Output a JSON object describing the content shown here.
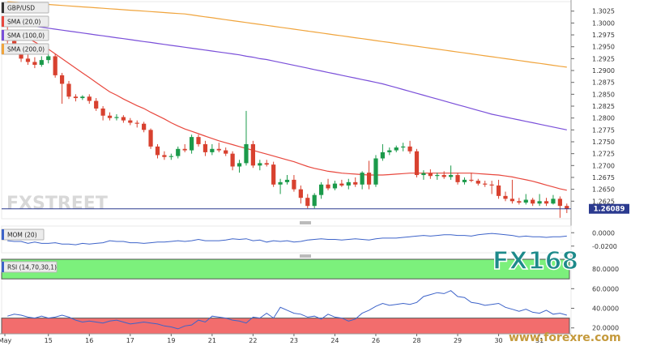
{
  "chart_data": [
    {
      "type": "candlestick",
      "symbol": "GBP/USD",
      "legend": [
        {
          "name": "GBP/USD",
          "color": "#333333"
        },
        {
          "name": "SMA (20,0)",
          "color": "#e8483e"
        },
        {
          "name": "SMA (100,0)",
          "color": "#7a4fd9"
        },
        {
          "name": "SMA (200,0)",
          "color": "#f0a43c"
        }
      ],
      "ylim": [
        1.2588,
        1.3045
      ],
      "ytick_labels": [
        "1.3025",
        "1.3000",
        "1.2975",
        "1.2950",
        "1.2925",
        "1.2900",
        "1.2875",
        "1.2850",
        "1.2825",
        "1.2800",
        "1.2775",
        "1.2750",
        "1.2725",
        "1.2700",
        "1.2675",
        "1.2650",
        "1.2625"
      ],
      "ytick_values": [
        1.3025,
        1.3,
        1.2975,
        1.295,
        1.2925,
        1.29,
        1.2875,
        1.285,
        1.2825,
        1.28,
        1.2775,
        1.275,
        1.2725,
        1.27,
        1.2675,
        1.265,
        1.2625
      ],
      "last_price": "1.26089",
      "last_price_value": 1.26089,
      "x_labels": [
        "May",
        "15",
        "16",
        "17",
        "19",
        "21",
        "22",
        "23",
        "24",
        "26",
        "28",
        "29",
        "30",
        "31"
      ],
      "candles": [
        [
          1.298,
          1.2995,
          1.2955,
          1.2962
        ],
        [
          1.2962,
          1.2968,
          1.2935,
          1.2945
        ],
        [
          1.2945,
          1.2952,
          1.2918,
          1.2925
        ],
        [
          1.2925,
          1.2935,
          1.2912,
          1.2918
        ],
        [
          1.2918,
          1.2928,
          1.2905,
          1.2912
        ],
        [
          1.2912,
          1.293,
          1.2908,
          1.2922
        ],
        [
          1.2922,
          1.294,
          1.2915,
          1.293
        ],
        [
          1.293,
          1.2935,
          1.2885,
          1.289
        ],
        [
          1.289,
          1.2895,
          1.283,
          1.2872
        ],
        [
          1.2872,
          1.2878,
          1.284,
          1.2845
        ],
        [
          1.2845,
          1.285,
          1.2835,
          1.2842
        ],
        [
          1.2842,
          1.2848,
          1.2838,
          1.2845
        ],
        [
          1.2845,
          1.285,
          1.283,
          1.2836
        ],
        [
          1.2836,
          1.2842,
          1.2815,
          1.282
        ],
        [
          1.282,
          1.2825,
          1.2795,
          1.2805
        ],
        [
          1.2805,
          1.2812,
          1.2795,
          1.28
        ],
        [
          1.28,
          1.2808,
          1.2795,
          1.2802
        ],
        [
          1.2802,
          1.2806,
          1.279,
          1.2795
        ],
        [
          1.2795,
          1.28,
          1.2785,
          1.279
        ],
        [
          1.279,
          1.2795,
          1.278,
          1.2788
        ],
        [
          1.2788,
          1.2792,
          1.277,
          1.2775
        ],
        [
          1.2775,
          1.2778,
          1.2735,
          1.274
        ],
        [
          1.274,
          1.2745,
          1.2715,
          1.2722
        ],
        [
          1.2722,
          1.273,
          1.2712,
          1.2718
        ],
        [
          1.2718,
          1.2725,
          1.2712,
          1.272
        ],
        [
          1.272,
          1.274,
          1.2715,
          1.2735
        ],
        [
          1.2735,
          1.2745,
          1.2728,
          1.2732
        ],
        [
          1.2732,
          1.2765,
          1.2725,
          1.276
        ],
        [
          1.276,
          1.2765,
          1.274,
          1.2745
        ],
        [
          1.2745,
          1.2752,
          1.272,
          1.2728
        ],
        [
          1.2728,
          1.2745,
          1.2722,
          1.2735
        ],
        [
          1.2735,
          1.2748,
          1.2728,
          1.2732
        ],
        [
          1.2732,
          1.2738,
          1.272,
          1.2725
        ],
        [
          1.2725,
          1.273,
          1.269,
          1.2698
        ],
        [
          1.2698,
          1.2712,
          1.2685,
          1.2705
        ],
        [
          1.2705,
          1.2815,
          1.27,
          1.2745
        ],
        [
          1.2745,
          1.2752,
          1.2695,
          1.27
        ],
        [
          1.27,
          1.2712,
          1.269,
          1.2705
        ],
        [
          1.2705,
          1.2712,
          1.2698,
          1.2702
        ],
        [
          1.2702,
          1.2708,
          1.2655,
          1.266
        ],
        [
          1.266,
          1.2672,
          1.264,
          1.2665
        ],
        [
          1.2665,
          1.268,
          1.266,
          1.267
        ],
        [
          1.267,
          1.268,
          1.2645,
          1.265
        ],
        [
          1.265,
          1.2658,
          1.262,
          1.2632
        ],
        [
          1.2632,
          1.264,
          1.261,
          1.2615
        ],
        [
          1.2615,
          1.2642,
          1.261,
          1.2638
        ],
        [
          1.2638,
          1.2665,
          1.263,
          1.266
        ],
        [
          1.266,
          1.2672,
          1.2648,
          1.2652
        ],
        [
          1.2652,
          1.2668,
          1.2648,
          1.2662
        ],
        [
          1.2662,
          1.267,
          1.2655,
          1.2658
        ],
        [
          1.2658,
          1.2672,
          1.265,
          1.2665
        ],
        [
          1.2665,
          1.2675,
          1.2655,
          1.266
        ],
        [
          1.266,
          1.2688,
          1.265,
          1.2685
        ],
        [
          1.2685,
          1.271,
          1.265,
          1.266
        ],
        [
          1.266,
          1.2722,
          1.2655,
          1.2715
        ],
        [
          1.2715,
          1.2745,
          1.271,
          1.2728
        ],
        [
          1.2728,
          1.2738,
          1.2722,
          1.2732
        ],
        [
          1.2732,
          1.2742,
          1.2728,
          1.2738
        ],
        [
          1.2738,
          1.2748,
          1.273,
          1.274
        ],
        [
          1.274,
          1.2752,
          1.2725,
          1.273
        ],
        [
          1.273,
          1.2735,
          1.2675,
          1.268
        ],
        [
          1.268,
          1.269,
          1.267,
          1.2684
        ],
        [
          1.2684,
          1.2692,
          1.2672,
          1.2678
        ],
        [
          1.2678,
          1.2685,
          1.267,
          1.268
        ],
        [
          1.268,
          1.2688,
          1.2672,
          1.2676
        ],
        [
          1.2676,
          1.27,
          1.267,
          1.268
        ],
        [
          1.268,
          1.2685,
          1.266,
          1.2665
        ],
        [
          1.2665,
          1.2675,
          1.266,
          1.267
        ],
        [
          1.267,
          1.2685,
          1.2665,
          1.2668
        ],
        [
          1.2668,
          1.2672,
          1.2658,
          1.2662
        ],
        [
          1.2662,
          1.2668,
          1.2655,
          1.266
        ],
        [
          1.266,
          1.2668,
          1.264,
          1.2658
        ],
        [
          1.2658,
          1.267,
          1.263,
          1.2636
        ],
        [
          1.2636,
          1.2645,
          1.2625,
          1.263
        ],
        [
          1.263,
          1.267,
          1.262,
          1.2625
        ],
        [
          1.2625,
          1.2632,
          1.2618,
          1.2622
        ],
        [
          1.2622,
          1.264,
          1.2618,
          1.2628
        ],
        [
          1.2628,
          1.2632,
          1.2615,
          1.262
        ],
        [
          1.262,
          1.264,
          1.2615,
          1.2625
        ],
        [
          1.2625,
          1.2632,
          1.2615,
          1.262
        ],
        [
          1.262,
          1.2638,
          1.2618,
          1.263
        ],
        [
          1.263,
          1.2635,
          1.259,
          1.2615
        ],
        [
          1.2615,
          1.262,
          1.26,
          1.2609
        ]
      ],
      "sma20": [
        1.2985,
        1.298,
        1.2975,
        1.2968,
        1.296,
        1.2952,
        1.2945,
        1.2935,
        1.2925,
        1.2915,
        1.2905,
        1.2895,
        1.2885,
        1.2875,
        1.2865,
        1.2855,
        1.2848,
        1.284,
        1.2833,
        1.2826,
        1.282,
        1.2812,
        1.2805,
        1.2798,
        1.279,
        1.2783,
        1.2777,
        1.2772,
        1.2767,
        1.2762,
        1.2757,
        1.2752,
        1.2748,
        1.2744,
        1.274,
        1.2736,
        1.2732,
        1.2728,
        1.2724,
        1.272,
        1.2716,
        1.2712,
        1.2708,
        1.2703,
        1.2698,
        1.2694,
        1.2691,
        1.2688,
        1.2686,
        1.2684,
        1.2683,
        1.2682,
        1.2681,
        1.268,
        1.268,
        1.268,
        1.2681,
        1.2682,
        1.2683,
        1.2684,
        1.2684,
        1.2684,
        1.2684,
        1.2684,
        1.2684,
        1.2684,
        1.2684,
        1.2684,
        1.2684,
        1.2683,
        1.2682,
        1.2681,
        1.268,
        1.2678,
        1.2676,
        1.2673,
        1.267,
        1.2667,
        1.2663,
        1.2659,
        1.2655,
        1.2651,
        1.2648
      ],
      "sma100": [
        1.3,
        1.2999,
        1.2997,
        1.2995,
        1.2993,
        1.2991,
        1.2989,
        1.2987,
        1.2985,
        1.2983,
        1.2981,
        1.2979,
        1.2977,
        1.2975,
        1.2973,
        1.2971,
        1.2969,
        1.2967,
        1.2965,
        1.2963,
        1.2961,
        1.2959,
        1.2957,
        1.2955,
        1.2953,
        1.2951,
        1.2949,
        1.2947,
        1.2945,
        1.2943,
        1.2941,
        1.2939,
        1.2937,
        1.2935,
        1.2933,
        1.293,
        1.2928,
        1.2925,
        1.2923,
        1.292,
        1.2917,
        1.2914,
        1.2911,
        1.2908,
        1.2905,
        1.2902,
        1.2899,
        1.2896,
        1.2893,
        1.289,
        1.2887,
        1.2884,
        1.2881,
        1.2878,
        1.2875,
        1.2872,
        1.2868,
        1.2864,
        1.286,
        1.2856,
        1.2852,
        1.2848,
        1.2844,
        1.284,
        1.2836,
        1.2832,
        1.2828,
        1.2824,
        1.282,
        1.2816,
        1.2812,
        1.2808,
        1.2805,
        1.2802,
        1.2799,
        1.2796,
        1.2793,
        1.279,
        1.2787,
        1.2784,
        1.2781,
        1.2778,
        1.2775
      ],
      "sma200": [
        1.3045,
        1.3044,
        1.3043,
        1.3042,
        1.3041,
        1.304,
        1.3039,
        1.3038,
        1.3037,
        1.3036,
        1.3035,
        1.3034,
        1.3033,
        1.3032,
        1.3031,
        1.303,
        1.3029,
        1.3028,
        1.3027,
        1.3026,
        1.3025,
        1.3024,
        1.3023,
        1.3022,
        1.3021,
        1.302,
        1.3019,
        1.3017,
        1.3015,
        1.3013,
        1.3011,
        1.3009,
        1.3007,
        1.3005,
        1.3003,
        1.3001,
        1.2999,
        1.2997,
        1.2995,
        1.2993,
        1.2991,
        1.2989,
        1.2987,
        1.2985,
        1.2983,
        1.2981,
        1.2979,
        1.2977,
        1.2975,
        1.2973,
        1.2971,
        1.2969,
        1.2967,
        1.2965,
        1.2963,
        1.2961,
        1.2959,
        1.2957,
        1.2955,
        1.2953,
        1.2951,
        1.2949,
        1.2947,
        1.2945,
        1.2943,
        1.2941,
        1.2939,
        1.2937,
        1.2935,
        1.2933,
        1.2931,
        1.2929,
        1.2927,
        1.2925,
        1.2923,
        1.2921,
        1.2919,
        1.2917,
        1.2915,
        1.2913,
        1.2911,
        1.2909,
        1.2907
      ]
    },
    {
      "type": "line",
      "name": "MOM (20)",
      "ylim": [
        -0.03,
        0.01
      ],
      "ytick_labels": [
        "0.0000",
        "-0.0200"
      ],
      "ytick_values": [
        0.0,
        -0.02
      ],
      "values": [
        -0.012,
        -0.013,
        -0.013,
        -0.016,
        -0.014,
        -0.016,
        -0.016,
        -0.015,
        -0.017,
        -0.017,
        -0.018,
        -0.016,
        -0.017,
        -0.016,
        -0.015,
        -0.012,
        -0.013,
        -0.013,
        -0.015,
        -0.015,
        -0.016,
        -0.015,
        -0.014,
        -0.014,
        -0.013,
        -0.012,
        -0.013,
        -0.012,
        -0.01,
        -0.012,
        -0.012,
        -0.012,
        -0.011,
        -0.009,
        -0.01,
        -0.009,
        -0.012,
        -0.011,
        -0.014,
        -0.012,
        -0.013,
        -0.012,
        -0.014,
        -0.013,
        -0.011,
        -0.01,
        -0.009,
        -0.01,
        -0.01,
        -0.011,
        -0.01,
        -0.009,
        -0.01,
        -0.011,
        -0.009,
        -0.008,
        -0.008,
        -0.008,
        -0.007,
        -0.006,
        -0.005,
        -0.004,
        -0.005,
        -0.004,
        -0.003,
        -0.003,
        -0.004,
        -0.004,
        -0.005,
        -0.003,
        -0.002,
        -0.001,
        -0.002,
        -0.003,
        -0.004,
        -0.006,
        -0.005,
        -0.006,
        -0.006,
        -0.007,
        -0.006,
        -0.006,
        -0.005
      ]
    },
    {
      "type": "line",
      "name": "RSI (14,70,30,1)",
      "ylim": [
        14,
        90
      ],
      "ytick_labels": [
        "80.0000",
        "60.0000",
        "40.0000",
        "20.0000"
      ],
      "ytick_values": [
        80,
        60,
        40,
        20
      ],
      "overbought": 70,
      "oversold": 30,
      "overbought_color": "#7cf07c",
      "oversold_color": "#f26d6d",
      "values": [
        32,
        34,
        33,
        31,
        30,
        32,
        30,
        31,
        33,
        31,
        28,
        26,
        27,
        26,
        25,
        27,
        28,
        26,
        24,
        25,
        26,
        25,
        24,
        22,
        21,
        19,
        22,
        23,
        28,
        26,
        32,
        31,
        30,
        28,
        27,
        25,
        31,
        30,
        35,
        30,
        41,
        38,
        35,
        34,
        31,
        32,
        29,
        34,
        31,
        30,
        27,
        29,
        35,
        38,
        42,
        45,
        43,
        44,
        45,
        44,
        46,
        52,
        54,
        56,
        55,
        58,
        52,
        51,
        46,
        45,
        43,
        44,
        45,
        41,
        39,
        37,
        39,
        36,
        35,
        38,
        34,
        35,
        33
      ]
    }
  ],
  "watermarks": {
    "fxstreet": "FXSTREET",
    "fx168": "FX168",
    "site": "www.forexre.com"
  }
}
